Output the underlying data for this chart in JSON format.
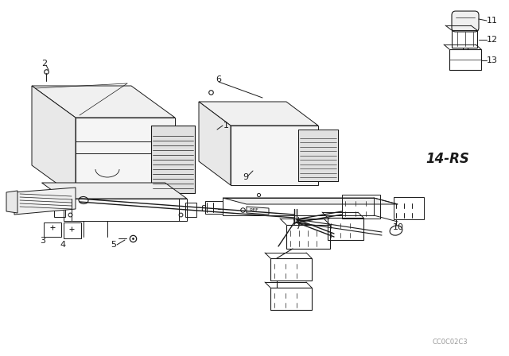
{
  "bg_color": "#ffffff",
  "line_color": "#1a1a1a",
  "label_14rs": "14-RS",
  "watermark": "CC0C02C3",
  "lw_main": 0.7,
  "lw_thick": 1.2
}
